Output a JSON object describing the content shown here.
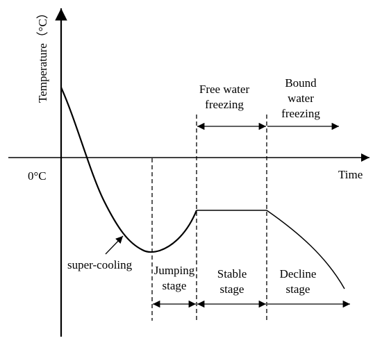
{
  "axes": {
    "y_label": "Temperature（°C）",
    "x_label": "Time",
    "zero_label": "0°C"
  },
  "annotations": {
    "supercooling": "super-cooling",
    "free_water": [
      "Free water",
      "freezing"
    ],
    "bound_water": [
      "Bound",
      "water",
      "freezing"
    ],
    "jumping": [
      "Jumping",
      "stage"
    ],
    "stable": [
      "Stable",
      "stage"
    ],
    "decline": [
      "Decline",
      "stage"
    ]
  }
}
